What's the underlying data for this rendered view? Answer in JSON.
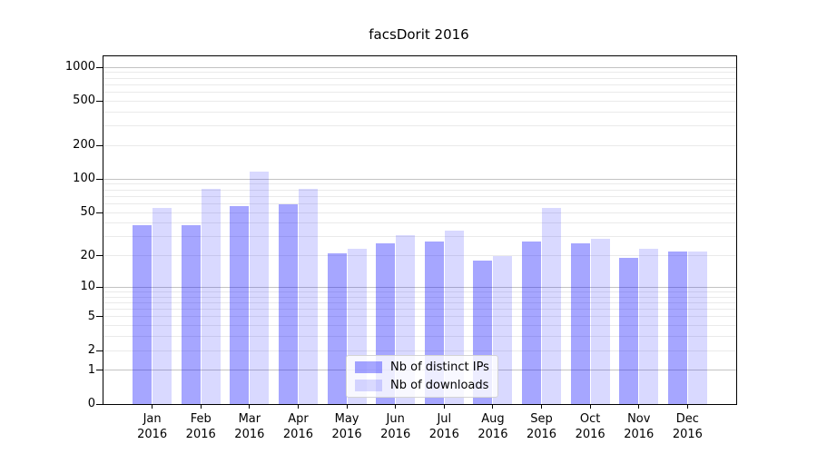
{
  "chart_data": {
    "type": "bar",
    "title": "facsDorit 2016",
    "categories": [
      "Jan",
      "Feb",
      "Mar",
      "Apr",
      "May",
      "Jun",
      "Jul",
      "Aug",
      "Sep",
      "Oct",
      "Nov",
      "Dec"
    ],
    "year": "2016",
    "series": [
      {
        "name": "Nb of distinct IPs",
        "color": "rgba(0,0,255,0.35)",
        "values": [
          38,
          38,
          57,
          59,
          21,
          26,
          27,
          18,
          27,
          26,
          19,
          22
        ]
      },
      {
        "name": "Nb of downloads",
        "color": "rgba(0,0,255,0.15)",
        "values": [
          55,
          82,
          118,
          82,
          23,
          31,
          34,
          20,
          55,
          29,
          23,
          22
        ]
      }
    ],
    "yscale": "log1p",
    "yticks": [
      0,
      1,
      2,
      5,
      10,
      20,
      50,
      100,
      200,
      500,
      1000
    ],
    "ylim": [
      0,
      1258
    ],
    "grid": "major+minor",
    "grid_major_color": "#c3c3c3",
    "grid_minor_color": "#eaeaea",
    "legend_position": "lower-center",
    "xlabel": "",
    "ylabel": ""
  }
}
